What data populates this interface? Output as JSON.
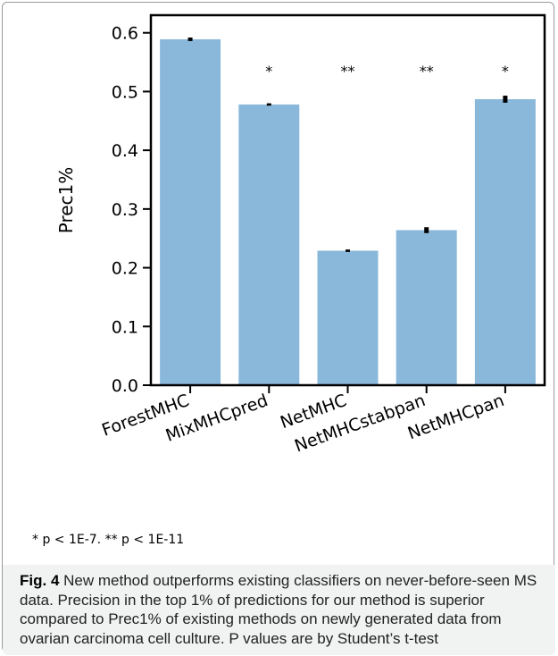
{
  "chart_data": {
    "type": "bar",
    "categories": [
      "ForestMHC",
      "MixMHCpred",
      "NetMHC",
      "NetMHCstabpan",
      "NetMHCpan"
    ],
    "values": [
      0.589,
      0.478,
      0.229,
      0.264,
      0.487
    ],
    "errors": [
      0.003,
      0.002,
      0.002,
      0.005,
      0.006
    ],
    "significance": [
      "",
      "*",
      "**",
      "**",
      "*"
    ],
    "ylabel": "Prec1%",
    "xlabel": "",
    "ylim": [
      0,
      0.63
    ],
    "yticks": [
      "0.0",
      "0.1",
      "0.2",
      "0.3",
      "0.4",
      "0.5",
      "0.6"
    ],
    "ytick_values": [
      0,
      0.1,
      0.2,
      0.3,
      0.4,
      0.5,
      0.6
    ],
    "bar_color": "#8ab8da",
    "error_color": "#000000",
    "grid": false
  },
  "footnote": "* p < 1E-7. ** p < 1E-11",
  "caption": {
    "label": "Fig. 4",
    "text": " New method outperforms existing classifiers on never-before-seen MS data. Precision in the top 1% of predictions for our method is superior compared to Prec1% of existing methods on newly generated data from ovarian carcinoma cell culture. P values are by Student’s t-test"
  }
}
